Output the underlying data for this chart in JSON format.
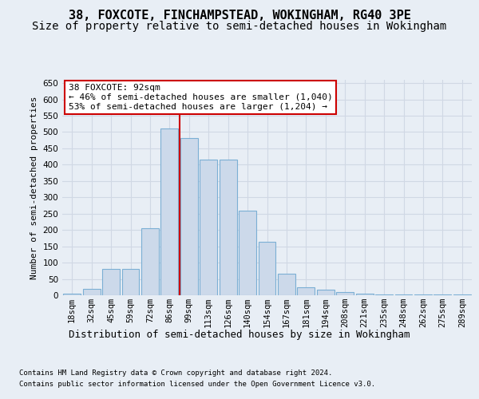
{
  "title": "38, FOXCOTE, FINCHAMPSTEAD, WOKINGHAM, RG40 3PE",
  "subtitle": "Size of property relative to semi-detached houses in Wokingham",
  "xlabel": "Distribution of semi-detached houses by size in Wokingham",
  "ylabel": "Number of semi-detached properties",
  "categories": [
    "18sqm",
    "32sqm",
    "45sqm",
    "59sqm",
    "72sqm",
    "86sqm",
    "99sqm",
    "113sqm",
    "126sqm",
    "140sqm",
    "154sqm",
    "167sqm",
    "181sqm",
    "194sqm",
    "208sqm",
    "221sqm",
    "235sqm",
    "248sqm",
    "262sqm",
    "275sqm",
    "289sqm"
  ],
  "bar_values": [
    5,
    20,
    80,
    80,
    205,
    510,
    482,
    415,
    415,
    258,
    165,
    65,
    25,
    18,
    10,
    5,
    3,
    2,
    2,
    2,
    2
  ],
  "bar_color": "#ccd9ea",
  "bar_edge_color": "#7bafd4",
  "vline_x": 5.5,
  "vline_color": "#cc0000",
  "annotation_text": "38 FOXCOTE: 92sqm\n← 46% of semi-detached houses are smaller (1,040)\n53% of semi-detached houses are larger (1,204) →",
  "annotation_box_facecolor": "#ffffff",
  "annotation_box_edgecolor": "#cc0000",
  "footer1": "Contains HM Land Registry data © Crown copyright and database right 2024.",
  "footer2": "Contains public sector information licensed under the Open Government Licence v3.0.",
  "ylim": [
    0,
    660
  ],
  "yticks": [
    0,
    50,
    100,
    150,
    200,
    250,
    300,
    350,
    400,
    450,
    500,
    550,
    600,
    650
  ],
  "bg_color": "#e8eef5",
  "grid_color": "#d0d8e4",
  "title_fontsize": 11,
  "subtitle_fontsize": 10,
  "ylabel_fontsize": 8,
  "tick_fontsize": 7.5,
  "xlabel_fontsize": 9,
  "footer_fontsize": 6.5,
  "annot_fontsize": 8
}
